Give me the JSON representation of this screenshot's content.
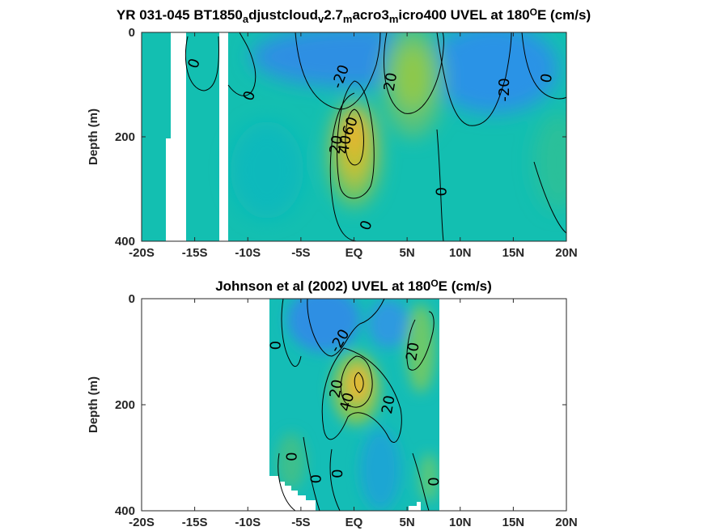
{
  "chart_data": [
    {
      "type": "heatmap",
      "title_main": "YR 031-045 BT1850",
      "title_parts": [
        {
          "text": "YR 031-045 BT1850",
          "sub": false
        },
        {
          "text": "a",
          "sub": true
        },
        {
          "text": "djustcloud",
          "sub": false
        },
        {
          "text": "v",
          "sub": true
        },
        {
          "text": "2.7",
          "sub": false
        },
        {
          "text": "m",
          "sub": true
        },
        {
          "text": "acro3",
          "sub": false
        },
        {
          "text": "m",
          "sub": true
        },
        {
          "text": "icro400 UVEL at 180",
          "sub": false
        },
        {
          "text": "O",
          "sup": true
        },
        {
          "text": "E (cm/s)",
          "sub": false
        }
      ],
      "xlabel": "",
      "ylabel": "Depth (m)",
      "xlim": [
        -20,
        20
      ],
      "ylim": [
        400,
        0
      ],
      "x_tick_values": [
        -20,
        -15,
        -10,
        -5,
        0,
        5,
        10,
        15,
        20
      ],
      "x_tick_labels": [
        "-20S",
        "-15S",
        "-10S",
        "-5S",
        "EQ",
        "5N",
        "10N",
        "15N",
        "20N"
      ],
      "y_tick_values": [
        0,
        200,
        400
      ],
      "y_tick_labels": [
        "0",
        "200",
        "400"
      ],
      "colormap": "parula",
      "contour_labels": [
        {
          "text": "0",
          "x": -15,
          "y": 60,
          "rot": -70
        },
        {
          "text": "0",
          "x": -9.8,
          "y": 122,
          "rot": -70
        },
        {
          "text": "-20",
          "x": -1.2,
          "y": 85,
          "rot": -70
        },
        {
          "text": "20",
          "x": 3.5,
          "y": 95,
          "rot": -80
        },
        {
          "text": "-20",
          "x": 14.2,
          "y": 110,
          "rot": -90
        },
        {
          "text": "0",
          "x": 18.2,
          "y": 88,
          "rot": -80
        },
        {
          "text": "60",
          "x": -0.3,
          "y": 180,
          "rot": -70
        },
        {
          "text": "40",
          "x": -0.8,
          "y": 215,
          "rot": -80
        },
        {
          "text": "20",
          "x": -1.6,
          "y": 215,
          "rot": -80
        },
        {
          "text": "0",
          "x": 8.3,
          "y": 305,
          "rot": -90
        },
        {
          "text": "0",
          "x": 1.2,
          "y": 370,
          "rot": -70
        }
      ]
    },
    {
      "type": "heatmap",
      "title_parts": [
        {
          "text": "Johnson et al (2002) UVEL at 180",
          "sub": false
        },
        {
          "text": "O",
          "sup": true
        },
        {
          "text": "E (cm/s)",
          "sub": false
        }
      ],
      "xlabel": "",
      "ylabel": "Depth (m)",
      "xlim": [
        -20,
        20
      ],
      "ylim": [
        400,
        0
      ],
      "x_tick_values": [
        -20,
        -15,
        -10,
        -5,
        0,
        5,
        10,
        15,
        20
      ],
      "x_tick_labels": [
        "-20S",
        "-15S",
        "-10S",
        "-5S",
        "EQ",
        "5N",
        "10N",
        "15N",
        "20N"
      ],
      "y_tick_values": [
        0,
        200,
        400
      ],
      "y_tick_labels": [
        "0",
        "200",
        "400"
      ],
      "data_extent_x": [
        -8,
        8
      ],
      "colormap": "parula",
      "contour_labels": [
        {
          "text": "0",
          "x": -7.3,
          "y": 88,
          "rot": -90
        },
        {
          "text": "-20",
          "x": -1.3,
          "y": 80,
          "rot": -60
        },
        {
          "text": "20",
          "x": 5.6,
          "y": 100,
          "rot": -80
        },
        {
          "text": "20",
          "x": -1.6,
          "y": 170,
          "rot": -80
        },
        {
          "text": "40",
          "x": -0.6,
          "y": 195,
          "rot": -75
        },
        {
          "text": "20",
          "x": 3.3,
          "y": 200,
          "rot": -80
        },
        {
          "text": "0",
          "x": -5.8,
          "y": 298,
          "rot": -90
        },
        {
          "text": "0",
          "x": -3.5,
          "y": 340,
          "rot": -90
        },
        {
          "text": "0",
          "x": -1.5,
          "y": 330,
          "rot": -90
        },
        {
          "text": "0",
          "x": 7.6,
          "y": 345,
          "rot": -90
        }
      ]
    }
  ]
}
